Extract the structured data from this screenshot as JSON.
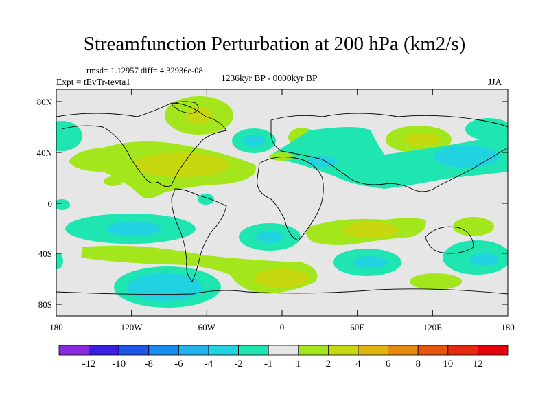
{
  "title": "Streamfunction Perturbation at 200 hPa (km2/s)",
  "stats": "rmsd= 1.12957 diff= 4.32936e-08",
  "experiment": "Expt = tEvTr-tevta1",
  "period": "1236kyr BP - 0000kyr BP",
  "season": "JJA",
  "lat_labels": [
    "80N",
    "40N",
    "0",
    "40S",
    "80S"
  ],
  "lon_labels": [
    "180",
    "120W",
    "60W",
    "0",
    "60E",
    "120E",
    "180"
  ],
  "colorbar": {
    "colors": [
      "#8a2be2",
      "#3a1fe0",
      "#1e56e6",
      "#1a8cf0",
      "#21b4ec",
      "#21d2e0",
      "#1fe6b0",
      "#e6e6e6",
      "#a3e61b",
      "#c7d80e",
      "#e0b411",
      "#e68a0e",
      "#e6540e",
      "#e62a0e",
      "#e6000e"
    ],
    "labels": [
      "-12",
      "-10",
      "-8",
      "-6",
      "-4",
      "-2",
      "-1",
      "1",
      "2",
      "4",
      "6",
      "8",
      "10",
      "12"
    ]
  },
  "palette": {
    "neg2": "#1fe6b0",
    "neg4": "#21d2e0",
    "pos1": "#a3e61b",
    "pos2": "#c7d80e",
    "background": "#e6e6e6"
  }
}
